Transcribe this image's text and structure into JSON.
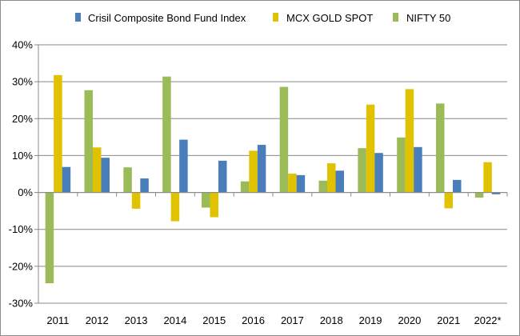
{
  "chart_data": {
    "type": "bar",
    "categories": [
      "2011",
      "2012",
      "2013",
      "2014",
      "2015",
      "2016",
      "2017",
      "2018",
      "2019",
      "2020",
      "2021",
      "2022*"
    ],
    "series": [
      {
        "name": "NIFTY 50",
        "color": "#9bbb59",
        "values": [
          -24.6,
          27.7,
          6.8,
          31.4,
          -4.1,
          3.0,
          28.6,
          3.2,
          12.0,
          14.9,
          24.1,
          -1.4
        ]
      },
      {
        "name": "MCX GOLD SPOT",
        "color": "#e1c200",
        "values": [
          31.8,
          12.2,
          -4.4,
          -7.8,
          -6.7,
          11.3,
          5.1,
          7.9,
          23.8,
          28.0,
          -4.3,
          8.2
        ]
      },
      {
        "name": "Crisil Composite Bond Fund Index",
        "color": "#4a7ebb",
        "values": [
          6.9,
          9.4,
          3.8,
          14.3,
          8.6,
          12.9,
          4.7,
          5.9,
          10.7,
          12.3,
          3.4,
          -0.5
        ]
      }
    ],
    "legend_order": [
      "Crisil Composite Bond Fund Index",
      "MCX GOLD SPOT",
      "NIFTY 50"
    ],
    "legend_position": "top",
    "ylim": [
      -30,
      40
    ],
    "yticks": [
      -30,
      -20,
      -10,
      0,
      10,
      20,
      30,
      40
    ],
    "ytick_labels": [
      "-30%",
      "-20%",
      "-10%",
      "0%",
      "10%",
      "20%",
      "30%",
      "40%"
    ],
    "grid": true,
    "title": "",
    "xlabel": "",
    "ylabel": ""
  }
}
